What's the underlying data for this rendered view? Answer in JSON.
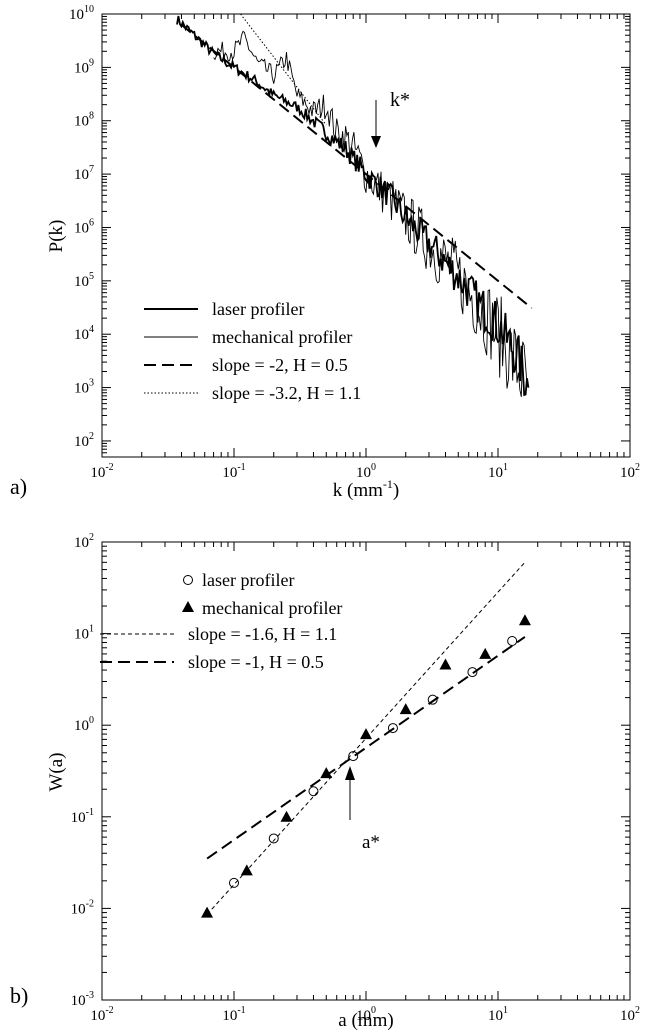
{
  "chart_data": [
    {
      "panel_label": "a)",
      "type": "line",
      "xlabel_base": "k (mm",
      "xlabel_exp": "-1",
      "xlabel_close": ")",
      "ylabel": "P(k)",
      "xscale": "log",
      "yscale": "log",
      "xlim": [
        0.01,
        100
      ],
      "ylim": [
        50,
        10000000000
      ],
      "x_ticks": [
        {
          "v": 0.01,
          "base": "10",
          "exp": "-2"
        },
        {
          "v": 0.1,
          "base": "10",
          "exp": "-1"
        },
        {
          "v": 1,
          "base": "10",
          "exp": "0"
        },
        {
          "v": 10,
          "base": "10",
          "exp": "1"
        },
        {
          "v": 100,
          "base": "10",
          "exp": "2"
        }
      ],
      "y_ticks": [
        {
          "v": 100,
          "base": "10",
          "exp": "2"
        },
        {
          "v": 1000,
          "base": "10",
          "exp": "3"
        },
        {
          "v": 10000,
          "base": "10",
          "exp": "4"
        },
        {
          "v": 100000,
          "base": "10",
          "exp": "5"
        },
        {
          "v": 1000000,
          "base": "10",
          "exp": "6"
        },
        {
          "v": 10000000,
          "base": "10",
          "exp": "7"
        },
        {
          "v": 100000000,
          "base": "10",
          "exp": "8"
        },
        {
          "v": 1000000000,
          "base": "10",
          "exp": "9"
        },
        {
          "v": 10000000000,
          "base": "10",
          "exp": "10"
        }
      ],
      "legend_position": "bottom-left",
      "series": [
        {
          "name": "laser profiler",
          "style": "solid-thick",
          "noise": 0.25,
          "x": [
            0.037,
            0.05,
            0.07,
            0.1,
            0.14,
            0.2,
            0.3,
            0.5,
            0.7,
            1.0,
            1.5,
            2.0,
            3.0,
            5.0,
            7.0,
            10.0,
            14.0,
            17.0
          ],
          "y": [
            8000000000,
            4000000000,
            1800000000,
            1000000000,
            600000000,
            300000000,
            180000000,
            60000000,
            30000000,
            10000000,
            4000000,
            1500000,
            500000,
            120000,
            40000,
            15000,
            4000,
            1000
          ]
        },
        {
          "name": "mechanical profiler",
          "style": "solid-thin",
          "noise": 0.45,
          "x": [
            0.07,
            0.1,
            0.12,
            0.15,
            0.2,
            0.25,
            0.3,
            0.4,
            0.5,
            0.6,
            0.7,
            0.85,
            1.0,
            1.3,
            1.6,
            2.0,
            3.0,
            5.0,
            8.0,
            12.0,
            17.0
          ],
          "y": [
            2000000000,
            2000000000,
            3500000000,
            1200000000,
            700000000,
            1500000000,
            300000000,
            150000000,
            200000000,
            60000000,
            50000000,
            25000000,
            10000000,
            5000000,
            3000000,
            1500000,
            500000,
            120000,
            25000,
            5000,
            1000
          ]
        },
        {
          "name": "slope = -2, H = 0.5",
          "style": "dashed",
          "x": [
            0.04,
            18
          ],
          "y": [
            6250000000,
            30864
          ]
        },
        {
          "name": "slope = -3.2, H = 1.1",
          "style": "dotted",
          "x": [
            0.112,
            0.5
          ],
          "y": [
            10000000000,
            83000000
          ]
        }
      ],
      "annotations": [
        {
          "text": "k*",
          "x": 1.0,
          "y": 60000000
        }
      ]
    },
    {
      "panel_label": "b)",
      "type": "scatter",
      "xlabel": "a (mm)",
      "ylabel": "W(a)",
      "xscale": "log",
      "yscale": "log",
      "xlim": [
        0.01,
        100
      ],
      "ylim": [
        0.001,
        100
      ],
      "x_ticks": [
        {
          "v": 0.01,
          "base": "10",
          "exp": "-2"
        },
        {
          "v": 0.1,
          "base": "10",
          "exp": "-1"
        },
        {
          "v": 1,
          "base": "10",
          "exp": "0"
        },
        {
          "v": 10,
          "base": "10",
          "exp": "1"
        },
        {
          "v": 100,
          "base": "10",
          "exp": "2"
        }
      ],
      "y_ticks": [
        {
          "v": 0.001,
          "base": "10",
          "exp": "-3"
        },
        {
          "v": 0.01,
          "base": "10",
          "exp": "-2"
        },
        {
          "v": 0.1,
          "base": "10",
          "exp": "-1"
        },
        {
          "v": 1,
          "base": "10",
          "exp": "0"
        },
        {
          "v": 10,
          "base": "10",
          "exp": "1"
        },
        {
          "v": 100,
          "base": "10",
          "exp": "2"
        }
      ],
      "legend_position": "top-left",
      "series": [
        {
          "name": "laser profiler",
          "style": "open-circle",
          "x": [
            0.1,
            0.2,
            0.4,
            0.8,
            1.6,
            3.2,
            6.4,
            12.8
          ],
          "y": [
            0.019,
            0.058,
            0.19,
            0.46,
            0.93,
            1.9,
            3.8,
            8.3
          ]
        },
        {
          "name": "mechanical profiler",
          "style": "filled-triangle",
          "x": [
            0.0625,
            0.125,
            0.25,
            0.5,
            1.0,
            2.0,
            4.0,
            8.0,
            16.0
          ],
          "y": [
            0.009,
            0.026,
            0.1,
            0.3,
            0.8,
            1.5,
            4.6,
            6.0,
            14.0
          ]
        },
        {
          "name": "slope = -1.6, H = 1.1",
          "style": "short-dashed",
          "x": [
            0.0625,
            16
          ],
          "y": [
            0.0086,
            60
          ]
        },
        {
          "name": "slope = -1, H = 0.5",
          "style": "long-dashed",
          "x": [
            0.0625,
            16
          ],
          "y": [
            0.035,
            9.2
          ]
        }
      ],
      "annotations": [
        {
          "text": "a*",
          "x": 0.6,
          "y": 0.25
        }
      ]
    }
  ]
}
